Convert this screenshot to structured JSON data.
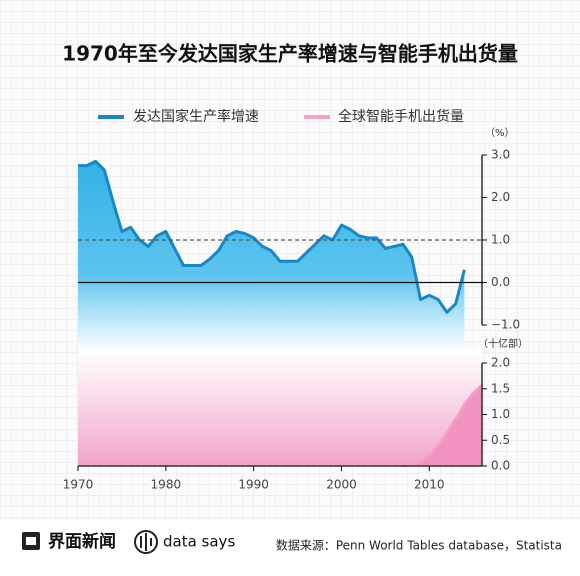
{
  "chart_data": [
    {
      "type": "line",
      "title": "1970年至今发达国家生产率增速与智能手机出货量",
      "unit": "（%）",
      "xlim": [
        1970,
        2016
      ],
      "x": [
        1970,
        1971,
        1972,
        1973,
        1974,
        1975,
        1976,
        1977,
        1978,
        1979,
        1980,
        1981,
        1982,
        1983,
        1984,
        1985,
        1986,
        1987,
        1988,
        1989,
        1990,
        1991,
        1992,
        1993,
        1994,
        1995,
        1996,
        1997,
        1998,
        1999,
        2000,
        2001,
        2002,
        2003,
        2004,
        2005,
        2006,
        2007,
        2008,
        2009,
        2010,
        2011,
        2012,
        2013,
        2014
      ],
      "series": [
        {
          "name": "发达国家生产率增速",
          "color": "#1a86c6",
          "values": [
            2.75,
            2.75,
            2.85,
            2.65,
            1.9,
            1.2,
            1.3,
            1.0,
            0.85,
            1.1,
            1.2,
            0.8,
            0.4,
            0.4,
            0.4,
            0.55,
            0.75,
            1.1,
            1.2,
            1.15,
            1.05,
            0.85,
            0.75,
            0.5,
            0.5,
            0.5,
            0.7,
            0.9,
            1.1,
            1.0,
            1.35,
            1.25,
            1.1,
            1.05,
            1.05,
            0.8,
            0.85,
            0.9,
            0.6,
            -0.4,
            -0.3,
            -0.4,
            -0.7,
            -0.5,
            0.3
          ]
        }
      ],
      "ylim": [
        -1,
        3
      ],
      "yticks": [
        {
          "value": 3,
          "label": "3.0"
        },
        {
          "value": 2,
          "label": "2.0"
        },
        {
          "value": 1,
          "label": "1.0"
        },
        {
          "value": 0,
          "label": "0.0"
        },
        {
          "value": -1,
          "label": "−1.0"
        }
      ],
      "reference_line": 1
    },
    {
      "type": "line",
      "unit": "（十亿部）",
      "xlim": [
        1970,
        2016
      ],
      "x": [
        2007,
        2008,
        2009,
        2010,
        2011,
        2012,
        2013,
        2014,
        2015,
        2016
      ],
      "series": [
        {
          "name": "全球智能手机出货量",
          "color": "#f4a0c8",
          "values": [
            0,
            0.02,
            0.08,
            0.21,
            0.4,
            0.66,
            0.92,
            1.2,
            1.42,
            1.57
          ]
        }
      ],
      "ylim": [
        0,
        2
      ],
      "yticks": [
        {
          "value": 2,
          "label": "2.0"
        },
        {
          "value": 1.5,
          "label": "1.5"
        },
        {
          "value": 1,
          "label": "1.0"
        },
        {
          "value": 0.5,
          "label": "0.5"
        },
        {
          "value": 0,
          "label": "0.0"
        }
      ],
      "xticks": [
        1970,
        1980,
        1990,
        2000,
        2010
      ]
    }
  ],
  "footer": {
    "brand": "界面新闻",
    "tag": "data says",
    "source": "数据来源：Penn World Tables database，Statista"
  }
}
